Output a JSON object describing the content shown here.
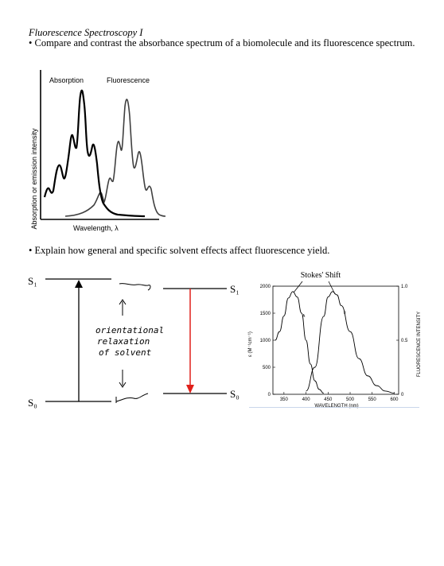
{
  "header": {
    "title": "Fluorescence Spectroscopy I",
    "bullet1": "• Compare and contrast the absorbance spectrum of a biomolecule and its fluorescence spectrum.",
    "bullet2": "• Explain how general and specific solvent effects affect fluorescence yield."
  },
  "figure1": {
    "ylabel": "Absorption or emission intensity",
    "xlabel": "Wavelength, λ",
    "legend_absorption": "Absorption",
    "legend_fluorescence": "Fluorescence"
  },
  "jablonski": {
    "s1_left": "S₁",
    "s0_left": "S₀",
    "s1_right": "S₁",
    "s0_right": "S₀",
    "note_line1": "orientational",
    "note_line2": "relaxation",
    "note_line3": "of solvent",
    "arrow_color": "#e0201a"
  },
  "chart_data": {
    "type": "line",
    "title": "Stokes' Shift",
    "xlabel": "WAVELENGTH (nm)",
    "ylabel_left": "ε (M⁻¹cm⁻¹)",
    "ylabel_right": "FLUORESCENCE INTENSITY",
    "x_ticks": [
      "350",
      "400",
      "450",
      "500",
      "550",
      "600"
    ],
    "y_left_ticks": [
      "0",
      "500",
      "1000",
      "1500",
      "2000"
    ],
    "y_right_ticks": [
      "0",
      "0.5",
      "1.0"
    ],
    "xlim": [
      325,
      610
    ],
    "ylim_left": [
      0,
      2000
    ],
    "ylim_right": [
      0,
      1.0
    ],
    "series": [
      {
        "name": "A",
        "axis": "left",
        "x": [
          330,
          340,
          350,
          360,
          370,
          380,
          390,
          400,
          410,
          420,
          430,
          440
        ],
        "values": [
          1000,
          1160,
          1450,
          1780,
          1900,
          1800,
          1500,
          1000,
          560,
          250,
          90,
          20
        ]
      },
      {
        "name": "F",
        "axis": "right",
        "x": [
          400,
          420,
          440,
          450,
          460,
          470,
          480,
          500,
          520,
          540,
          560,
          580,
          600
        ],
        "values": [
          0.03,
          0.25,
          0.72,
          0.9,
          0.95,
          0.92,
          0.82,
          0.58,
          0.33,
          0.17,
          0.08,
          0.03,
          0.01
        ]
      }
    ]
  }
}
